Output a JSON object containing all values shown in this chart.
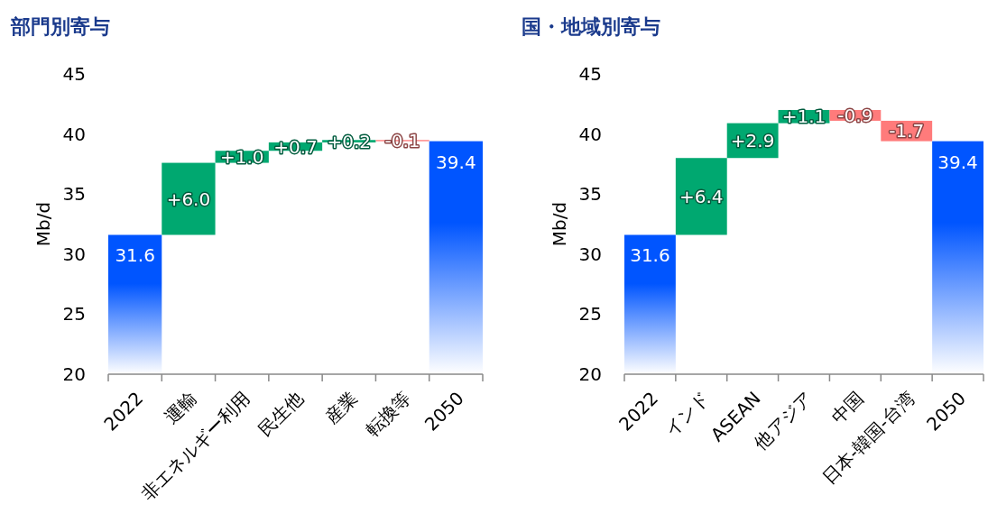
{
  "chart_data": [
    {
      "type": "bar",
      "title": "部門別寄与",
      "ylabel": "Mb/d",
      "categories": [
        "2022",
        "運輸",
        "非エネルギー利用",
        "民生他",
        "産業",
        "転換等",
        "2050"
      ],
      "values": [
        31.6,
        6.0,
        1.0,
        0.7,
        0.2,
        -0.1,
        39.4
      ],
      "base": [
        null,
        31.6,
        37.6,
        38.6,
        39.3,
        39.5,
        null
      ],
      "colors": [
        "#0055ff",
        "#00a870",
        "#00a870",
        "#00a870",
        "#00a870",
        "#ff7b7b",
        "#0055ff"
      ],
      "value_labels": [
        "31.6",
        "+6.0",
        "+1.0",
        "+0.7",
        "+0.2",
        "-0.1",
        "39.4"
      ],
      "ylim": [
        20,
        45
      ],
      "yticks": [
        20,
        25,
        30,
        35,
        40,
        45
      ]
    },
    {
      "type": "bar",
      "title": "国・地域別寄与",
      "ylabel": "Mb/d",
      "categories": [
        "2022",
        "インド",
        "ASEAN",
        "他アジア",
        "中国",
        "日本-韓国-台湾",
        "2050"
      ],
      "values": [
        31.6,
        6.4,
        2.9,
        1.1,
        -0.9,
        -1.7,
        39.4
      ],
      "base": [
        null,
        31.6,
        38.0,
        40.9,
        42.0,
        41.1,
        null
      ],
      "colors": [
        "#0055ff",
        "#00a870",
        "#00a870",
        "#00a870",
        "#ff7b7b",
        "#ff7b7b",
        "#0055ff"
      ],
      "value_labels": [
        "31.6",
        "+6.4",
        "+2.9",
        "+1.1",
        "-0.9",
        "-1.7",
        "39.4"
      ],
      "ylim": [
        20,
        45
      ],
      "yticks": [
        20,
        25,
        30,
        35,
        40,
        45
      ]
    }
  ]
}
